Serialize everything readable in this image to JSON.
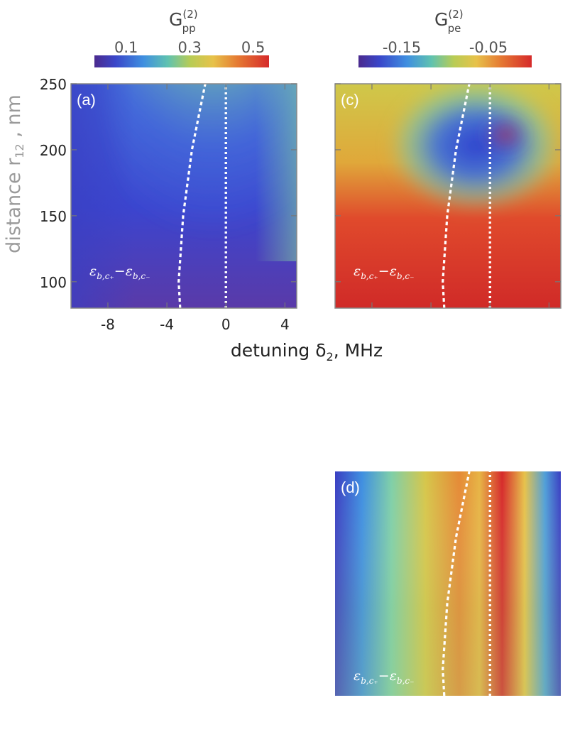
{
  "colorbars": {
    "pp": {
      "title": "G",
      "sup": "(2)",
      "sub": "pp",
      "ticks": [
        "0.1",
        "0.3",
        "0.5"
      ],
      "tick_values": [
        0.1,
        0.3,
        0.5
      ],
      "range": [
        0.0,
        0.55
      ]
    },
    "pe": {
      "title": "G",
      "sup": "(2)",
      "sub": "pe",
      "ticks": [
        "-0.15",
        "-0.05"
      ],
      "tick_values": [
        -0.15,
        -0.05
      ],
      "range": [
        -0.2,
        0.0
      ]
    }
  },
  "axes": {
    "ylabel_main": "distance r",
    "ylabel_sub": "12",
    "ylabel_tail": " , nm",
    "xlabel_main": "detuning δ",
    "xlabel_sub": "2",
    "xlabel_tail": ", MHz",
    "yticks": [
      "250",
      "200",
      "150",
      "100"
    ],
    "ytick_values": [
      250,
      200,
      150,
      100
    ],
    "xticks": [
      "-8",
      "-4",
      "0",
      "4"
    ],
    "xtick_values": [
      -8,
      -4,
      0,
      4
    ]
  },
  "annotation": {
    "e1": "ε",
    "e1_sub": "b,c₊",
    "dash": "−",
    "e2": "ε",
    "e2_sub": "b,c₋"
  },
  "chart_data": [
    {
      "panel": "(a)",
      "type": "heatmap",
      "quantity": "G_pp^(2)",
      "xlim": [
        -10.5,
        4.8
      ],
      "ylim": [
        80,
        250
      ],
      "colormap": "rainbow",
      "curves": {
        "left_dashed": [
          [
            -3.1,
            80
          ],
          [
            -3.2,
            100
          ],
          [
            -2.9,
            150
          ],
          [
            -2.3,
            200
          ],
          [
            -1.4,
            250
          ]
        ],
        "right_dotted": [
          [
            0,
            80
          ],
          [
            0,
            250
          ]
        ]
      }
    },
    {
      "panel": "(c)",
      "type": "heatmap",
      "quantity": "G_pe^(2)",
      "xlim": [
        -10.5,
        4.8
      ],
      "ylim": [
        80,
        250
      ],
      "colormap": "rainbow",
      "curves": {
        "left_dashed": [
          [
            -3.1,
            80
          ],
          [
            -3.2,
            100
          ],
          [
            -2.9,
            150
          ],
          [
            -2.3,
            200
          ],
          [
            -1.4,
            250
          ]
        ],
        "right_dotted": [
          [
            0,
            80
          ],
          [
            0,
            250
          ]
        ]
      }
    },
    {
      "panel": "(d)",
      "type": "heatmap",
      "quantity": "",
      "xlim": [
        -10.5,
        4.8
      ],
      "ylim": [
        80,
        250
      ],
      "colormap": "rainbow",
      "curves": {
        "left_dashed": [
          [
            -3.1,
            80
          ],
          [
            -3.2,
            100
          ],
          [
            -2.9,
            150
          ],
          [
            -2.3,
            200
          ],
          [
            -1.4,
            250
          ]
        ],
        "right_dotted": [
          [
            0,
            80
          ],
          [
            0,
            250
          ]
        ]
      }
    }
  ]
}
